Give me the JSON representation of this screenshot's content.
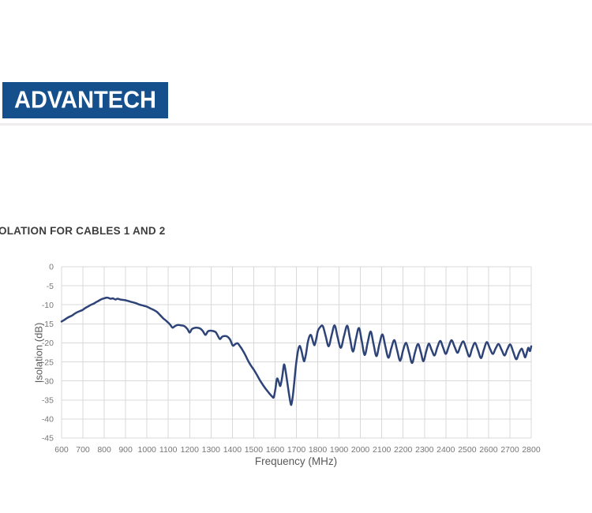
{
  "header": {
    "logo_text": "ADVANTECH",
    "logo_bg_color": "#15508c",
    "logo_text_color": "#ffffff",
    "divider_color": "#efeded"
  },
  "section_title": "OLATION FOR CABLES 1 AND 2",
  "section_title_color": "#3d3d3d",
  "chart_data": {
    "type": "line",
    "title": "",
    "xlabel": "Frequency (MHz)",
    "ylabel": "Isolation (dB)",
    "xlim": [
      600,
      2800
    ],
    "ylim": [
      -45,
      0
    ],
    "x_ticks": [
      600,
      700,
      800,
      900,
      1000,
      1100,
      1200,
      1300,
      1400,
      1500,
      1600,
      1700,
      1800,
      1900,
      2000,
      2100,
      2200,
      2300,
      2400,
      2500,
      2600,
      2700,
      2800
    ],
    "y_ticks": [
      0,
      -5,
      -10,
      -15,
      -20,
      -25,
      -30,
      -35,
      -40,
      -45
    ],
    "grid": true,
    "legend_position": "none",
    "line_color": "#2e4377",
    "grid_color": "#d9d9d9",
    "tick_label_color": "#767676",
    "axis_title_color": "#595959",
    "series": [
      {
        "points": [
          [
            600,
            -14.4
          ],
          [
            612,
            -14.0
          ],
          [
            625,
            -13.5
          ],
          [
            638,
            -13.1
          ],
          [
            650,
            -12.8
          ],
          [
            662,
            -12.3
          ],
          [
            675,
            -11.9
          ],
          [
            688,
            -11.6
          ],
          [
            700,
            -11.3
          ],
          [
            712,
            -10.8
          ],
          [
            725,
            -10.4
          ],
          [
            738,
            -10.0
          ],
          [
            750,
            -9.7
          ],
          [
            762,
            -9.3
          ],
          [
            775,
            -8.9
          ],
          [
            788,
            -8.5
          ],
          [
            800,
            -8.3
          ],
          [
            812,
            -8.1
          ],
          [
            820,
            -8.2
          ],
          [
            830,
            -8.4
          ],
          [
            840,
            -8.3
          ],
          [
            852,
            -8.6
          ],
          [
            862,
            -8.4
          ],
          [
            875,
            -8.6
          ],
          [
            888,
            -8.7
          ],
          [
            900,
            -8.8
          ],
          [
            912,
            -9.0
          ],
          [
            925,
            -9.2
          ],
          [
            938,
            -9.4
          ],
          [
            950,
            -9.6
          ],
          [
            962,
            -9.9
          ],
          [
            975,
            -10.1
          ],
          [
            988,
            -10.3
          ],
          [
            1000,
            -10.5
          ],
          [
            1015,
            -10.9
          ],
          [
            1030,
            -11.3
          ],
          [
            1045,
            -11.8
          ],
          [
            1060,
            -12.6
          ],
          [
            1075,
            -13.5
          ],
          [
            1088,
            -14.1
          ],
          [
            1100,
            -14.7
          ],
          [
            1110,
            -15.3
          ],
          [
            1120,
            -16.0
          ],
          [
            1131,
            -15.6
          ],
          [
            1145,
            -15.3
          ],
          [
            1160,
            -15.4
          ],
          [
            1175,
            -15.6
          ],
          [
            1190,
            -16.4
          ],
          [
            1200,
            -17.3
          ],
          [
            1210,
            -16.4
          ],
          [
            1222,
            -16.1
          ],
          [
            1235,
            -16.0
          ],
          [
            1248,
            -16.2
          ],
          [
            1262,
            -16.9
          ],
          [
            1274,
            -17.9
          ],
          [
            1285,
            -17.0
          ],
          [
            1298,
            -16.8
          ],
          [
            1310,
            -16.9
          ],
          [
            1322,
            -17.2
          ],
          [
            1333,
            -18.2
          ],
          [
            1342,
            -19.0
          ],
          [
            1352,
            -18.4
          ],
          [
            1365,
            -18.2
          ],
          [
            1378,
            -18.4
          ],
          [
            1390,
            -19.2
          ],
          [
            1402,
            -20.7
          ],
          [
            1412,
            -20.4
          ],
          [
            1424,
            -20.1
          ],
          [
            1436,
            -20.9
          ],
          [
            1448,
            -21.9
          ],
          [
            1460,
            -23.1
          ],
          [
            1472,
            -24.5
          ],
          [
            1485,
            -25.8
          ],
          [
            1500,
            -27.0
          ],
          [
            1515,
            -28.4
          ],
          [
            1530,
            -29.9
          ],
          [
            1545,
            -31.2
          ],
          [
            1558,
            -32.2
          ],
          [
            1572,
            -33.2
          ],
          [
            1585,
            -34.0
          ],
          [
            1594,
            -34.3
          ],
          [
            1602,
            -32.0
          ],
          [
            1609,
            -29.4
          ],
          [
            1617,
            -30.2
          ],
          [
            1625,
            -31.3
          ],
          [
            1634,
            -28.8
          ],
          [
            1642,
            -25.7
          ],
          [
            1650,
            -27.6
          ],
          [
            1659,
            -31.0
          ],
          [
            1668,
            -34.3
          ],
          [
            1676,
            -36.3
          ],
          [
            1684,
            -33.6
          ],
          [
            1691,
            -29.8
          ],
          [
            1699,
            -25.4
          ],
          [
            1707,
            -22.2
          ],
          [
            1715,
            -20.8
          ],
          [
            1723,
            -21.9
          ],
          [
            1731,
            -23.9
          ],
          [
            1737,
            -24.8
          ],
          [
            1745,
            -22.9
          ],
          [
            1753,
            -20.0
          ],
          [
            1761,
            -18.3
          ],
          [
            1769,
            -18.0
          ],
          [
            1777,
            -19.5
          ],
          [
            1785,
            -20.6
          ],
          [
            1793,
            -18.9
          ],
          [
            1801,
            -16.8
          ],
          [
            1812,
            -15.8
          ],
          [
            1824,
            -15.6
          ],
          [
            1837,
            -18.2
          ],
          [
            1851,
            -20.9
          ],
          [
            1865,
            -18.0
          ],
          [
            1879,
            -15.4
          ],
          [
            1893,
            -18.5
          ],
          [
            1908,
            -21.3
          ],
          [
            1923,
            -18.2
          ],
          [
            1938,
            -15.5
          ],
          [
            1951,
            -18.8
          ],
          [
            1965,
            -22.3
          ],
          [
            1979,
            -18.9
          ],
          [
            1993,
            -16.1
          ],
          [
            2006,
            -19.5
          ],
          [
            2020,
            -23.2
          ],
          [
            2034,
            -19.9
          ],
          [
            2048,
            -17.0
          ],
          [
            2061,
            -20.2
          ],
          [
            2075,
            -23.5
          ],
          [
            2089,
            -20.3
          ],
          [
            2103,
            -17.8
          ],
          [
            2117,
            -21.0
          ],
          [
            2131,
            -23.9
          ],
          [
            2145,
            -21.3
          ],
          [
            2159,
            -19.3
          ],
          [
            2172,
            -22.0
          ],
          [
            2186,
            -24.7
          ],
          [
            2200,
            -21.9
          ],
          [
            2214,
            -20.0
          ],
          [
            2228,
            -22.6
          ],
          [
            2242,
            -25.3
          ],
          [
            2256,
            -22.4
          ],
          [
            2270,
            -20.3
          ],
          [
            2283,
            -22.5
          ],
          [
            2295,
            -24.8
          ],
          [
            2308,
            -22.3
          ],
          [
            2320,
            -20.2
          ],
          [
            2333,
            -21.8
          ],
          [
            2347,
            -23.3
          ],
          [
            2360,
            -21.2
          ],
          [
            2374,
            -19.5
          ],
          [
            2387,
            -21.2
          ],
          [
            2400,
            -22.9
          ],
          [
            2414,
            -20.9
          ],
          [
            2427,
            -19.3
          ],
          [
            2441,
            -21.0
          ],
          [
            2455,
            -22.6
          ],
          [
            2468,
            -20.9
          ],
          [
            2482,
            -19.6
          ],
          [
            2496,
            -21.6
          ],
          [
            2510,
            -23.6
          ],
          [
            2523,
            -21.5
          ],
          [
            2537,
            -20.0
          ],
          [
            2551,
            -22.0
          ],
          [
            2565,
            -24.0
          ],
          [
            2578,
            -21.8
          ],
          [
            2592,
            -19.8
          ],
          [
            2606,
            -21.4
          ],
          [
            2620,
            -22.9
          ],
          [
            2633,
            -21.5
          ],
          [
            2647,
            -20.3
          ],
          [
            2661,
            -21.8
          ],
          [
            2675,
            -23.3
          ],
          [
            2688,
            -21.7
          ],
          [
            2702,
            -20.4
          ],
          [
            2716,
            -22.4
          ],
          [
            2730,
            -24.3
          ],
          [
            2742,
            -22.8
          ],
          [
            2755,
            -21.5
          ],
          [
            2764,
            -22.7
          ],
          [
            2772,
            -23.8
          ],
          [
            2780,
            -22.4
          ],
          [
            2786,
            -21.3
          ],
          [
            2791,
            -21.9
          ],
          [
            2795,
            -22.1
          ],
          [
            2800,
            -20.9
          ]
        ]
      }
    ]
  }
}
